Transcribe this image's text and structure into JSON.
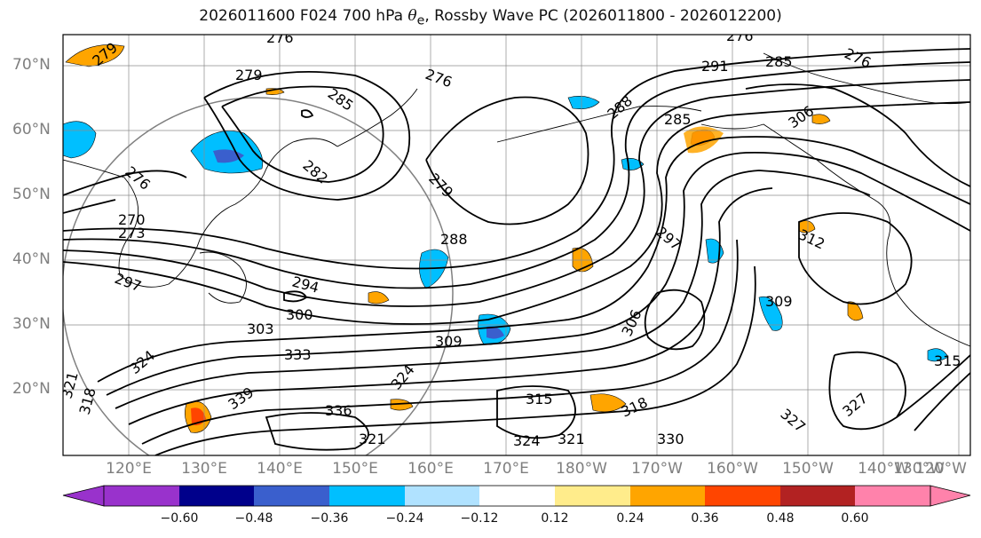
{
  "title": {
    "prefix": "2026011600 F024 700 hPa ",
    "theta_symbol": "θ",
    "theta_sub": "e",
    "suffix": ", Rossby Wave PC (2026011800 - 2026012200)"
  },
  "map": {
    "lat_labels": [
      "70°N",
      "60°N",
      "50°N",
      "40°N",
      "30°N",
      "20°N"
    ],
    "lon_labels": [
      "120°E",
      "130°E",
      "140°E",
      "150°E",
      "160°E",
      "170°E",
      "180°W",
      "170°W",
      "160°W",
      "150°W",
      "140°W",
      "130°W",
      "120°W"
    ],
    "contour_labels": [
      "279",
      "276",
      "279",
      "276",
      "285",
      "282",
      "279",
      "285",
      "288",
      "291",
      "285",
      "276",
      "276",
      "306",
      "276",
      "270",
      "273",
      "288",
      "297",
      "312",
      "297",
      "294",
      "300",
      "303",
      "309",
      "306",
      "309",
      "324",
      "315",
      "318",
      "324",
      "327",
      "321",
      "327",
      "333",
      "339",
      "336",
      "324",
      "321",
      "318",
      "315",
      "330",
      "321"
    ]
  },
  "colorbar": {
    "ticks": [
      "−0.60",
      "−0.48",
      "−0.36",
      "−0.24",
      "−0.12",
      "0.12",
      "0.24",
      "0.36",
      "0.48",
      "0.60"
    ],
    "colors": [
      "#9932cc",
      "#00008b",
      "#3a5fcd",
      "#00bfff",
      "#b0e2ff",
      "#ffffff",
      "#ffec8b",
      "#ffa500",
      "#ff4500",
      "#b22222",
      "#ff82ab"
    ]
  },
  "style": {
    "negative_fill": "#00bfff",
    "negative_strong": "#3a5fcd",
    "positive_fill": "#ffa500",
    "positive_strong": "#ff4500"
  }
}
